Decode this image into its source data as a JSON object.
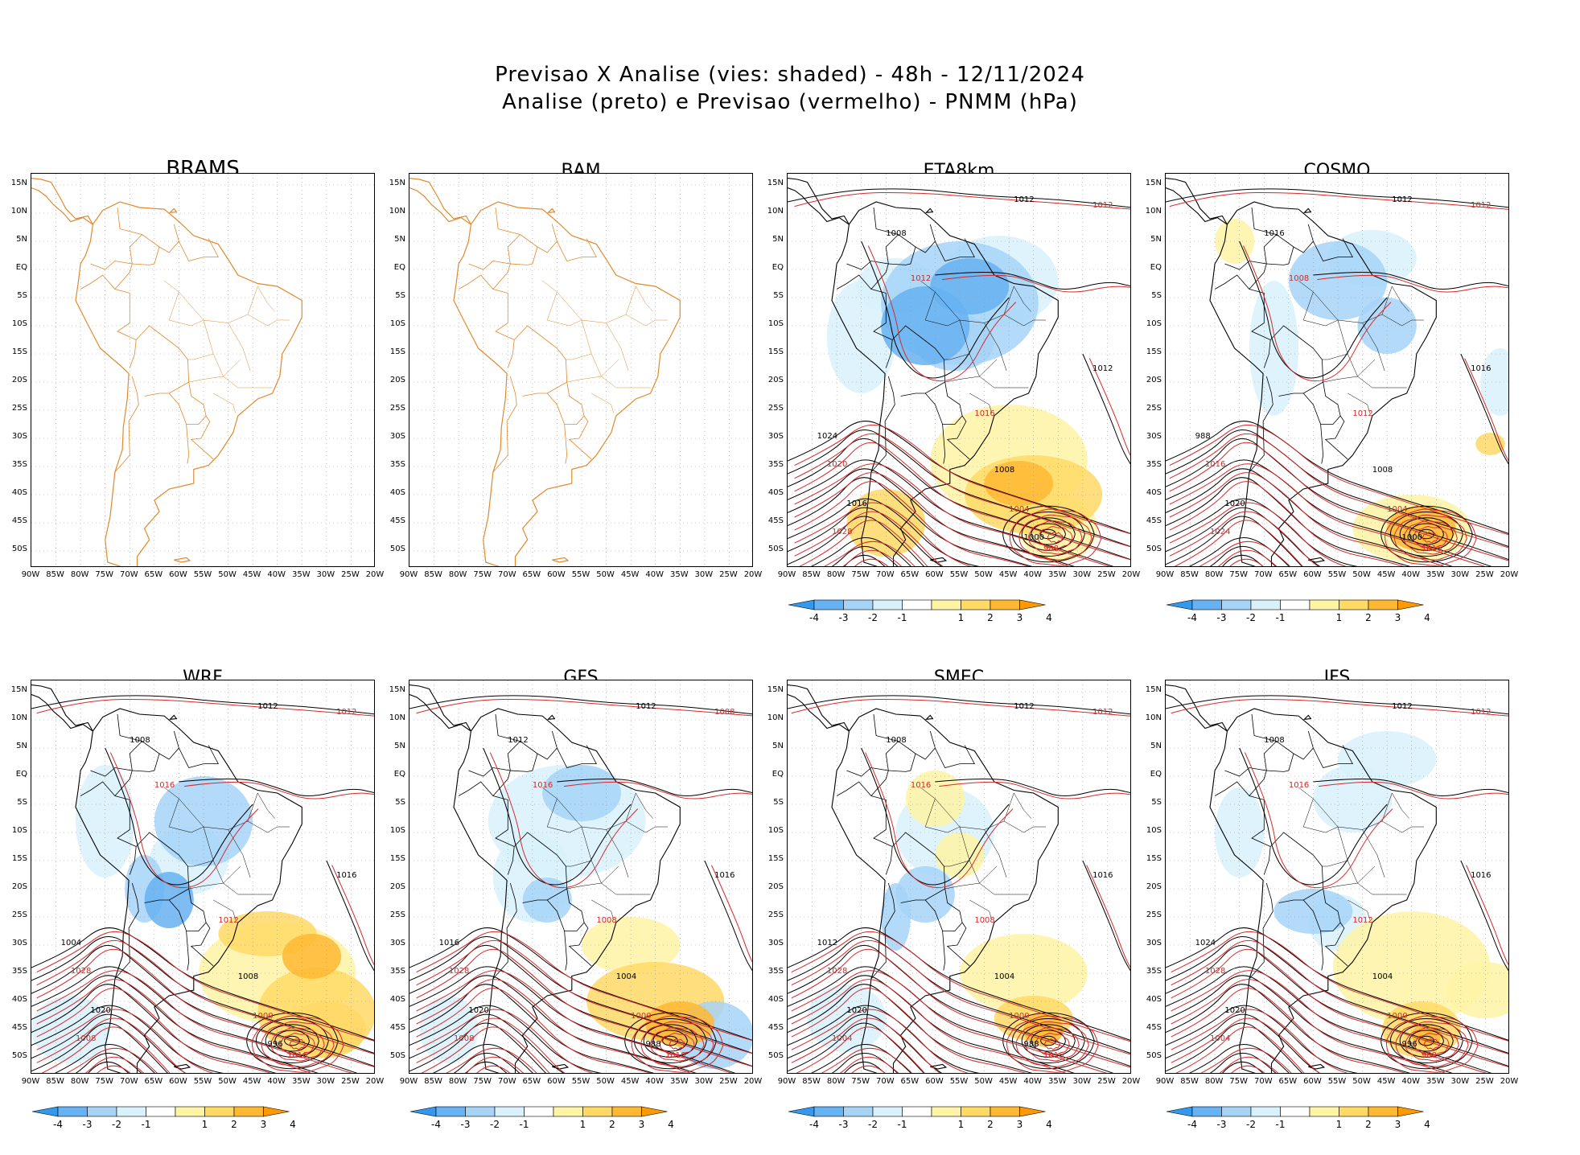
{
  "header": {
    "title_line1": "Previsao X Analise (vies: shaded) - 48h - 12/11/2024",
    "title_line2": "Analise (preto) e Previsao (vermelho) - PNMM (hPa)"
  },
  "axes": {
    "lat_labels": [
      "15N",
      "10N",
      "5N",
      "EQ",
      "5S",
      "10S",
      "15S",
      "20S",
      "25S",
      "30S",
      "35S",
      "40S",
      "45S",
      "50S"
    ],
    "lon_labels": [
      "90W",
      "85W",
      "80W",
      "75W",
      "70W",
      "65W",
      "60W",
      "55W",
      "50W",
      "45W",
      "40W",
      "35W",
      "30W",
      "25W",
      "20W"
    ]
  },
  "colorbar": {
    "labels": [
      "-4",
      "-3",
      "-2",
      "-1",
      "1",
      "2",
      "3",
      "4"
    ],
    "colors": [
      "#3399ee",
      "#66b2f2",
      "#a6d4f7",
      "#d8f1fb",
      "#ffffff",
      "#fff3a6",
      "#ffd966",
      "#ffb833",
      "#ff9900"
    ]
  },
  "colors": {
    "coastline": "#e08a2c",
    "analysis_contour": "#000000",
    "forecast_contour": "#d62828"
  },
  "panels": [
    {
      "title": "BRAMS",
      "has_data": false,
      "has_colorbar": false,
      "contour_labels": []
    },
    {
      "title": "BAM",
      "has_data": false,
      "has_colorbar": false,
      "contour_labels": []
    },
    {
      "title": "ETA8km",
      "has_data": true,
      "has_colorbar": true,
      "contour_labels": [
        "1012",
        "1012",
        "1008",
        "1012",
        "1012",
        "1016",
        "1008",
        "1004",
        "1000",
        "988",
        "1016",
        "1020",
        "1024",
        "1028"
      ]
    },
    {
      "title": "COSMO",
      "has_data": true,
      "has_colorbar": true,
      "contour_labels": [
        "1012",
        "1012",
        "1016",
        "1008",
        "1016",
        "1012",
        "1008",
        "1004",
        "1000",
        "1016",
        "1020",
        "1016",
        "988",
        "1024"
      ]
    },
    {
      "title": "WRF",
      "has_data": true,
      "has_colorbar": true,
      "contour_labels": [
        "1012",
        "1012",
        "1008",
        "1016",
        "1016",
        "1012",
        "1008",
        "1000",
        "996",
        "1016",
        "1020",
        "1028",
        "1004",
        "1008"
      ]
    },
    {
      "title": "GFS",
      "has_data": true,
      "has_colorbar": true,
      "contour_labels": [
        "1012",
        "1008",
        "1012",
        "1016",
        "1016",
        "1008",
        "1004",
        "1000",
        "988",
        "1016",
        "1020",
        "1028",
        "1016",
        "1008"
      ]
    },
    {
      "title": "SMEC",
      "has_data": true,
      "has_colorbar": true,
      "contour_labels": [
        "1012",
        "1012",
        "1008",
        "1016",
        "1016",
        "1008",
        "1004",
        "1000",
        "988",
        "1016",
        "1020",
        "1028",
        "1012",
        "1004"
      ]
    },
    {
      "title": "IFS",
      "has_data": true,
      "has_colorbar": true,
      "contour_labels": [
        "1012",
        "1012",
        "1008",
        "1016",
        "1016",
        "1012",
        "1004",
        "1000",
        "996",
        "988",
        "1020",
        "1028",
        "1024",
        "1004"
      ]
    }
  ]
}
